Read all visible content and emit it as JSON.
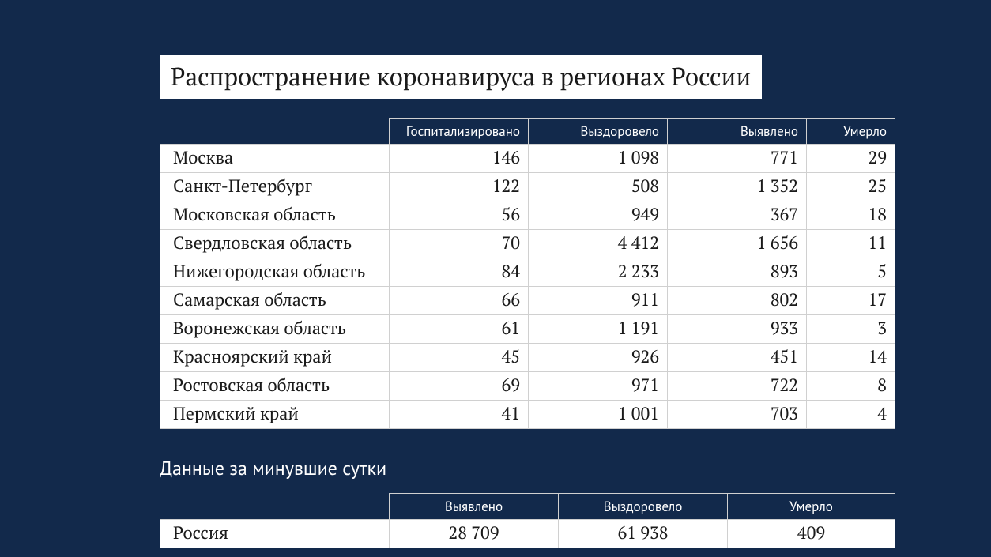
{
  "title": "Распространение коронавируса в регионах России",
  "main_table": {
    "columns": [
      "Госпитализировано",
      "Выздоровело",
      "Выявлено",
      "Умерло"
    ],
    "rows": [
      {
        "region": "Москва",
        "c": [
          "146",
          "1 098",
          "771",
          "29"
        ]
      },
      {
        "region": "Санкт-Петербург",
        "c": [
          "122",
          "508",
          "1 352",
          "25"
        ]
      },
      {
        "region": "Московская область",
        "c": [
          "56",
          "949",
          "367",
          "18"
        ]
      },
      {
        "region": "Свердловская область",
        "c": [
          "70",
          "4 412",
          "1 656",
          "11"
        ]
      },
      {
        "region": "Нижегородская область",
        "c": [
          "84",
          "2 233",
          "893",
          "5"
        ]
      },
      {
        "region": "Самарская область",
        "c": [
          "66",
          "911",
          "802",
          "17"
        ]
      },
      {
        "region": "Воронежская область",
        "c": [
          "61",
          "1 191",
          "933",
          "3"
        ]
      },
      {
        "region": "Красноярский край",
        "c": [
          "45",
          "926",
          "451",
          "14"
        ]
      },
      {
        "region": "Ростовская область",
        "c": [
          "69",
          "971",
          "722",
          "8"
        ]
      },
      {
        "region": "Пермский край",
        "c": [
          "41",
          "1 001",
          "703",
          "4"
        ]
      }
    ]
  },
  "subtitle": "Данные за минувшие сутки",
  "summary_table": {
    "columns": [
      "Выявлено",
      "Выздоровело",
      "Умерло"
    ],
    "rows": [
      {
        "region": "Россия",
        "c": [
          "28 709",
          "61 938",
          "409"
        ]
      }
    ]
  },
  "style": {
    "background_color": "#12294b",
    "table_row_bg": "#ffffff",
    "header_bg": "#12294b",
    "header_text": "#ffffff",
    "border_color": "#d0d0d0",
    "title_fontsize": 31,
    "cell_fontsize": 22,
    "header_fontsize": 17
  }
}
